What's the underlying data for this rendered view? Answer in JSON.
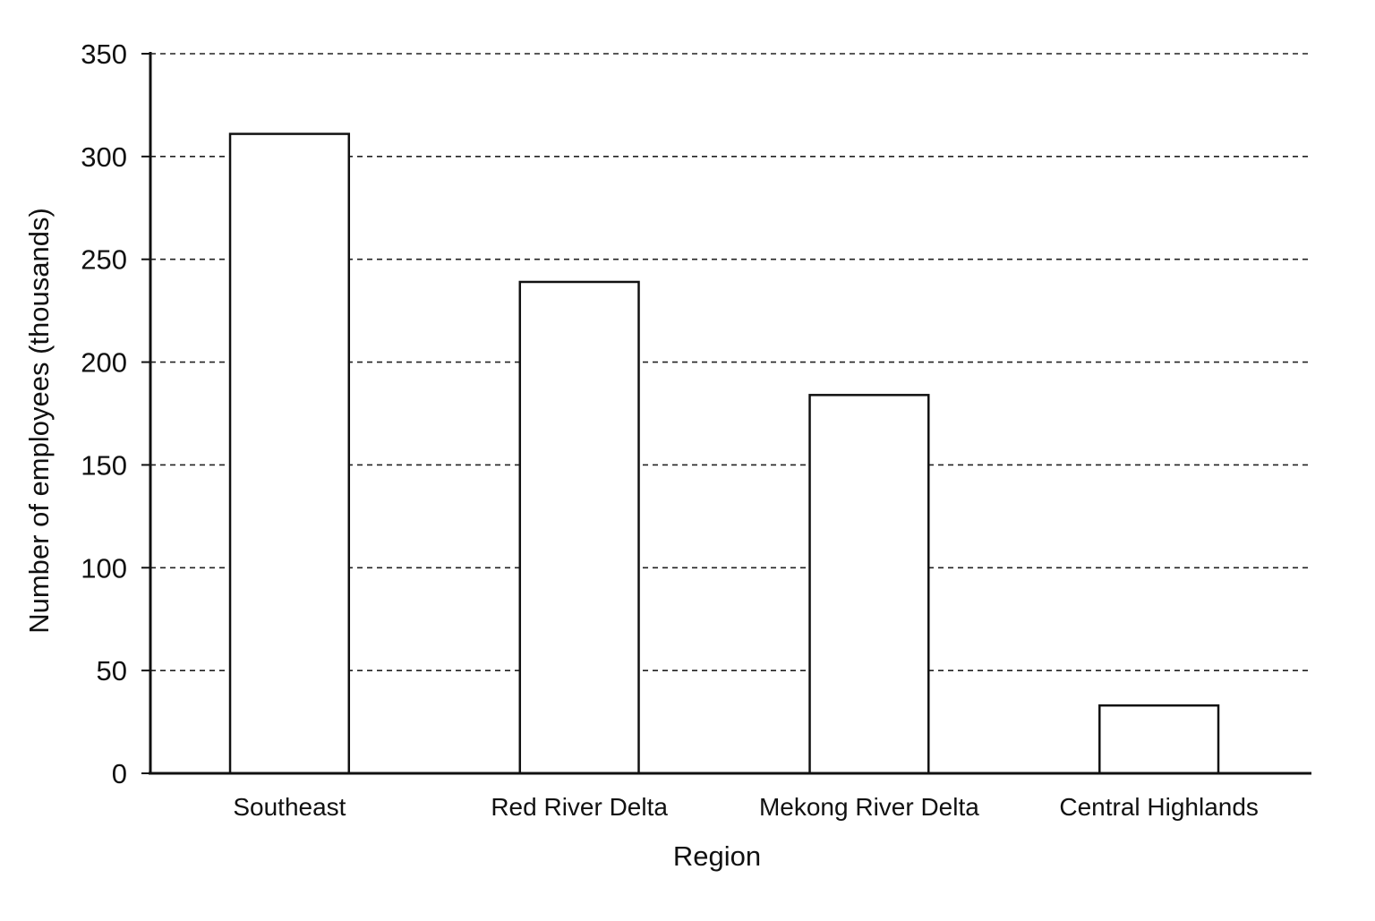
{
  "chart_data": {
    "type": "bar",
    "title": "",
    "xlabel": "Region",
    "ylabel": "Number of employees (thousands)",
    "categories": [
      "Southeast",
      "Red River Delta",
      "Mekong River Delta",
      "Central Highlands"
    ],
    "values": [
      311,
      239,
      184,
      33
    ],
    "ylim": [
      0,
      350
    ],
    "yticks": [
      "0",
      "50",
      "100",
      "150",
      "200",
      "250",
      "300",
      "350"
    ],
    "grid": "horizontal dashed",
    "bar_fill": "#ffffff",
    "bar_stroke": "#111111"
  }
}
